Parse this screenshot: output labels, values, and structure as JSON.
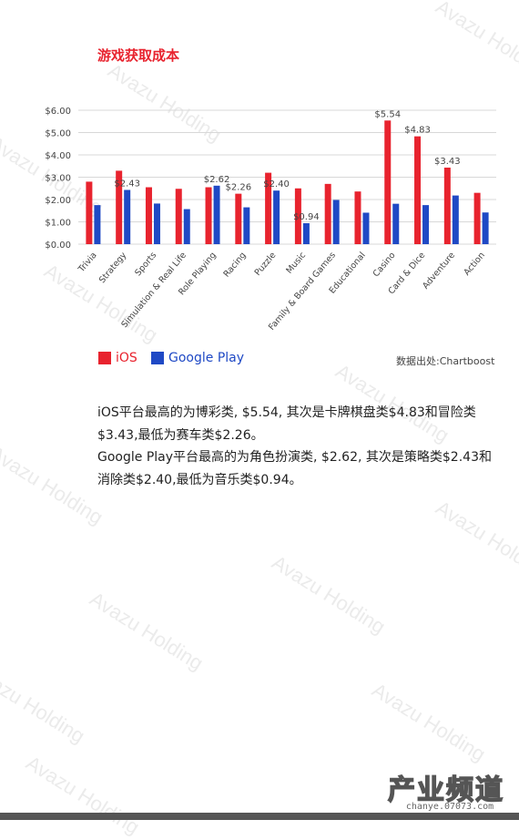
{
  "page": {
    "title": "游戏获取成本",
    "source": "数据出处:Chartboost",
    "paragraphs": [
      "iOS平台最高的为博彩类, $5.54, 其次是卡牌棋盘类$4.83和冒险类$3.43,最低为赛车类$2.26。",
      "Google  Play平台最高的为角色扮演类, $2.62, 其次是策略类$2.43和消除类$2.40,最低为音乐类$0.94。"
    ],
    "watermark": "Avazu Holding",
    "logo": {
      "text": "产业频道",
      "url": "chanye.07073.com"
    }
  },
  "colors": {
    "ios": "#e8232e",
    "google_play": "#1f49c5"
  },
  "chart_data": {
    "type": "bar",
    "categories": [
      "Trivia",
      "Strategy",
      "Sports",
      "Simulation & Real Life",
      "Role Playing",
      "Racing",
      "Puzzle",
      "Music",
      "Family & Board Games",
      "Educational",
      "Casino",
      "Card & Dice",
      "Adventure",
      "Action"
    ],
    "series": [
      {
        "name": "iOS",
        "color": "#e8232e",
        "values": [
          2.8,
          3.29,
          2.55,
          2.48,
          2.55,
          2.26,
          3.2,
          2.5,
          2.7,
          2.36,
          5.54,
          4.83,
          3.43,
          2.3
        ],
        "labels": [
          "",
          "",
          "",
          "",
          "",
          "$2.26",
          "",
          "",
          "",
          "",
          "$5.54",
          "$4.83",
          "$3.43",
          ""
        ]
      },
      {
        "name": "Google Play",
        "color": "#1f49c5",
        "values": [
          1.75,
          2.43,
          1.82,
          1.57,
          2.62,
          1.65,
          2.4,
          0.94,
          1.98,
          1.41,
          1.81,
          1.75,
          2.18,
          1.42
        ],
        "labels": [
          "",
          "$2.43",
          "",
          "",
          "$2.62",
          "",
          "$2.40",
          "$0.94",
          "",
          "",
          "",
          "",
          "",
          ""
        ]
      }
    ],
    "yticks": [
      "$0.00",
      "$1.00",
      "$2.00",
      "$3.00",
      "$4.00",
      "$5.00",
      "$6.00"
    ],
    "ylim": [
      0,
      6
    ],
    "grid": true,
    "legend": "bottom-left"
  }
}
